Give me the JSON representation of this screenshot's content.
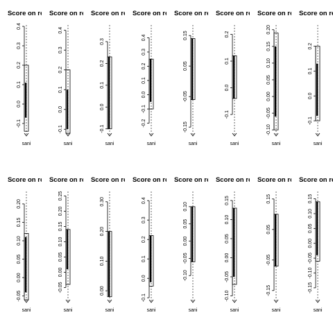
{
  "figure": {
    "layout": {
      "rows": 2,
      "cols": 8
    },
    "background": "#ffffff",
    "ink": "#000000"
  },
  "chart_data": [
    {
      "type": "bar",
      "title": "Score on reg",
      "categories": [
        "sani"
      ],
      "ylim": [
        -0.15,
        0.4
      ],
      "ticks": [
        -0.1,
        0.0,
        0.1,
        0.2,
        0.3,
        0.4
      ],
      "tick_labels": [
        "-0.1",
        "0.0",
        "0.1",
        "0.2",
        "0.3",
        "0.4"
      ],
      "bar": {
        "from": -0.07,
        "to": 0.11
      },
      "whisker": {
        "from": -0.14,
        "to": 0.2
      },
      "grid": false
    },
    {
      "type": "bar",
      "title": "Score on reg",
      "categories": [
        "sani"
      ],
      "ylim": [
        -0.12,
        0.42
      ],
      "ticks": [
        -0.1,
        0.0,
        0.1,
        0.2,
        0.3,
        0.4
      ],
      "tick_labels": [
        "-0.1",
        "0.0",
        "0.1",
        "0.2",
        "0.3",
        "0.4"
      ],
      "bar": {
        "from": -0.1,
        "to": 0.1
      },
      "whisker": {
        "from": -0.12,
        "to": 0.2
      },
      "grid": false
    },
    {
      "type": "bar",
      "title": "Score on reg",
      "categories": [
        "sani"
      ],
      "ylim": [
        -0.12,
        0.37
      ],
      "ticks": [
        -0.1,
        0.0,
        0.1,
        0.2,
        0.3
      ],
      "tick_labels": [
        "-0.1",
        "0.0",
        "0.1",
        "0.2",
        "0.3"
      ],
      "bar": {
        "from": -0.1,
        "to": 0.23
      },
      "whisker": {
        "from": -0.1,
        "to": 0.23
      },
      "grid": false
    },
    {
      "type": "bar",
      "title": "Score on reg",
      "categories": [
        "sani"
      ],
      "ylim": [
        -0.27,
        0.48
      ],
      "ticks": [
        -0.2,
        -0.1,
        0.0,
        0.1,
        0.2,
        0.3,
        0.4
      ],
      "tick_labels": [
        "-0.2",
        "-0.1",
        "0.0",
        "0.1",
        "0.2",
        "0.3",
        "0.4"
      ],
      "bar": {
        "from": -0.05,
        "to": 0.25
      },
      "whisker": {
        "from": -0.1,
        "to": 0.25
      },
      "grid": false
    },
    {
      "type": "bar",
      "title": "Score on reg",
      "categories": [
        "sani"
      ],
      "ylim": [
        -0.17,
        0.18
      ],
      "ticks": [
        -0.15,
        -0.05,
        0.05,
        0.15
      ],
      "tick_labels": [
        "-0.15",
        "-0.05",
        "0.05",
        "0.15"
      ],
      "bar": {
        "from": -0.06,
        "to": 0.14
      },
      "whisker": {
        "from": -0.06,
        "to": 0.14
      },
      "grid": false
    },
    {
      "type": "bar",
      "title": "Score on reg",
      "categories": [
        "sani"
      ],
      "ylim": [
        -0.17,
        0.23
      ],
      "ticks": [
        -0.1,
        0.0,
        0.1,
        0.2
      ],
      "tick_labels": [
        "-0.1",
        "0.0",
        "0.1",
        "0.2"
      ],
      "bar": {
        "from": -0.04,
        "to": 0.12
      },
      "whisker": {
        "from": -0.04,
        "to": 0.12
      },
      "grid": false
    },
    {
      "type": "bar",
      "title": "Score on reg",
      "categories": [
        "sani"
      ],
      "ylim": [
        -0.11,
        0.21
      ],
      "ticks": [
        -0.1,
        -0.05,
        0.0,
        0.05,
        0.1,
        0.15,
        0.2
      ],
      "tick_labels": [
        "-0.10",
        "-0.05",
        "0.00",
        "0.05",
        "0.10",
        "0.15",
        "0.20"
      ],
      "bar": {
        "from": -0.06,
        "to": 0.15
      },
      "whisker": {
        "from": -0.1,
        "to": 0.19
      },
      "grid": false
    },
    {
      "type": "bar",
      "title": "Score on reg",
      "categories": [
        "sani"
      ],
      "ylim": [
        -0.15,
        0.28
      ],
      "ticks": [
        -0.1,
        0.0,
        0.1,
        0.2
      ],
      "tick_labels": [
        "-0.1",
        "0.0",
        "0.1",
        "0.2"
      ],
      "bar": {
        "from": -0.08,
        "to": 0.13
      },
      "whisker": {
        "from": -0.1,
        "to": 0.2
      },
      "grid": false
    },
    {
      "type": "bar",
      "title": "Score on reg",
      "categories": [
        "sani"
      ],
      "ylim": [
        -0.06,
        0.23
      ],
      "ticks": [
        -0.05,
        0.0,
        0.05,
        0.1,
        0.15,
        0.2
      ],
      "tick_labels": [
        "-0.05",
        "0.00",
        "0.05",
        "0.10",
        "0.15",
        "0.20"
      ],
      "bar": {
        "from": -0.04,
        "to": 0.11
      },
      "whisker": {
        "from": -0.06,
        "to": 0.12
      },
      "grid": false
    },
    {
      "type": "bar",
      "title": "Score on reg",
      "categories": [
        "sani"
      ],
      "ylim": [
        -0.09,
        0.26
      ],
      "ticks": [
        -0.05,
        0.0,
        0.05,
        0.1,
        0.15,
        0.2,
        0.25
      ],
      "tick_labels": [
        "-0.05",
        "0.00",
        "0.05",
        "0.10",
        "0.15",
        "0.20",
        "0.25"
      ],
      "bar": {
        "from": 0.01,
        "to": 0.14
      },
      "whisker": {
        "from": -0.04,
        "to": 0.14
      },
      "grid": false
    },
    {
      "type": "bar",
      "title": "Score on reg",
      "categories": [
        "sani"
      ],
      "ylim": [
        -0.03,
        0.33
      ],
      "ticks": [
        0.0,
        0.1,
        0.2,
        0.3
      ],
      "tick_labels": [
        "0.00",
        "0.10",
        "0.20",
        "0.30"
      ],
      "bar": {
        "from": -0.02,
        "to": 0.2
      },
      "whisker": {
        "from": -0.02,
        "to": 0.2
      },
      "grid": false
    },
    {
      "type": "bar",
      "title": "Score on reg",
      "categories": [
        "sani"
      ],
      "ylim": [
        -0.11,
        0.44
      ],
      "ticks": [
        -0.1,
        0.0,
        0.1,
        0.2,
        0.3,
        0.4
      ],
      "tick_labels": [
        "-0.1",
        "0.0",
        "0.1",
        "0.2",
        "0.3",
        "0.4"
      ],
      "bar": {
        "from": -0.02,
        "to": 0.22
      },
      "whisker": {
        "from": -0.04,
        "to": 0.22
      },
      "grid": false
    },
    {
      "type": "bar",
      "title": "Score on reg",
      "categories": [
        "sani"
      ],
      "ylim": [
        -0.17,
        0.14
      ],
      "ticks": [
        -0.1,
        -0.05,
        0.0,
        0.05,
        0.1
      ],
      "tick_labels": [
        "-0.10",
        "-0.05",
        "0.00",
        "0.05",
        "0.10"
      ],
      "bar": {
        "from": -0.06,
        "to": 0.1
      },
      "whisker": {
        "from": -0.06,
        "to": 0.1
      },
      "grid": false
    },
    {
      "type": "bar",
      "title": "Score on reg",
      "categories": [
        "sani"
      ],
      "ylim": [
        -0.11,
        0.17
      ],
      "ticks": [
        -0.1,
        -0.05,
        0.0,
        0.05,
        0.1,
        0.15
      ],
      "tick_labels": [
        "-0.10",
        "-0.05",
        "0.00",
        "0.05",
        "0.10",
        "0.15"
      ],
      "bar": {
        "from": -0.05,
        "to": 0.13
      },
      "whisker": {
        "from": -0.07,
        "to": 0.13
      },
      "grid": false
    },
    {
      "type": "bar",
      "title": "Score on reg",
      "categories": [
        "sani"
      ],
      "ylim": [
        -0.18,
        0.17
      ],
      "ticks": [
        -0.15,
        -0.05,
        0.05,
        0.15
      ],
      "tick_labels": [
        "-0.15",
        "-0.05",
        "0.05",
        "0.15"
      ],
      "bar": {
        "from": -0.07,
        "to": 0.1
      },
      "whisker": {
        "from": -0.07,
        "to": 0.1
      },
      "grid": false
    },
    {
      "type": "bar",
      "title": "Score on reg",
      "categories": [
        "sani"
      ],
      "ylim": [
        -0.19,
        0.17
      ],
      "ticks": [
        -0.15,
        -0.1,
        -0.05,
        0.0,
        0.05,
        0.1,
        0.15
      ],
      "tick_labels": [
        "-0.15",
        "-0.10",
        "-0.05",
        "0.00",
        "0.05",
        "0.10",
        "0.15"
      ],
      "bar": {
        "from": -0.04,
        "to": 0.14
      },
      "whisker": {
        "from": -0.06,
        "to": 0.14
      },
      "grid": false
    }
  ]
}
